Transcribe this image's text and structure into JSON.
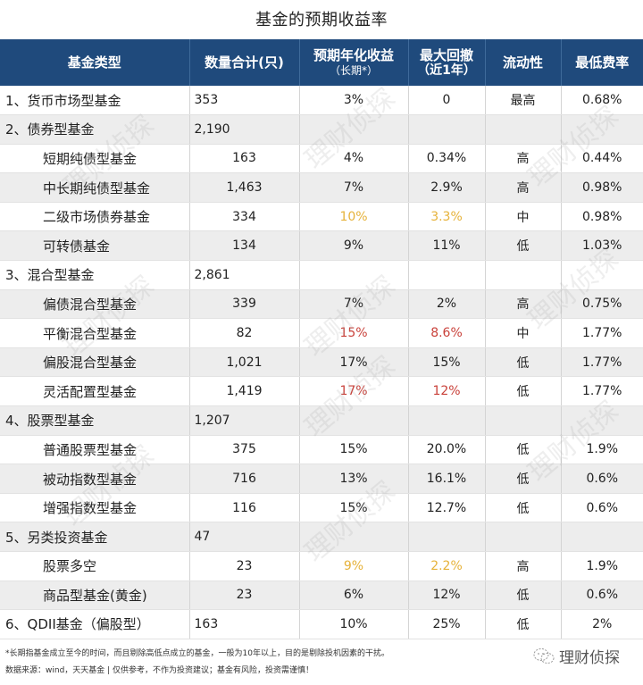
{
  "title": "基金的预期收益率",
  "header": {
    "col0": "基金类型",
    "col1": "数量合计(只)",
    "col2": "预期年化收益",
    "col2_sub": "（长期*）",
    "col3": "最大回撤",
    "col3_sub": "（近1年）",
    "col4": "流动性",
    "col5": "最低费率"
  },
  "rows": [
    {
      "type": "cat",
      "name": "1、货币市场型基金",
      "count": "353",
      "return": "3%",
      "drawdown": "0",
      "liquidity": "最高",
      "fee": "0.68%"
    },
    {
      "type": "cat",
      "name": "2、债券型基金",
      "count": "2,190",
      "return": "",
      "drawdown": "",
      "liquidity": "",
      "fee": ""
    },
    {
      "type": "sub",
      "name": "短期纯债型基金",
      "count": "163",
      "return": "4%",
      "drawdown": "0.34%",
      "liquidity": "高",
      "fee": "0.44%"
    },
    {
      "type": "sub",
      "name": "中长期纯债型基金",
      "count": "1,463",
      "return": "7%",
      "drawdown": "2.9%",
      "liquidity": "高",
      "fee": "0.98%"
    },
    {
      "type": "sub",
      "name": "二级市场债券基金",
      "count": "334",
      "return": "10%",
      "drawdown": "3.3%",
      "liquidity": "中",
      "fee": "0.98%",
      "highlight": "yellow"
    },
    {
      "type": "sub",
      "name": "可转债基金",
      "count": "134",
      "return": "9%",
      "drawdown": "11%",
      "liquidity": "低",
      "fee": "1.03%"
    },
    {
      "type": "cat",
      "name": "3、混合型基金",
      "count": "2,861",
      "return": "",
      "drawdown": "",
      "liquidity": "",
      "fee": ""
    },
    {
      "type": "sub",
      "name": "偏债混合型基金",
      "count": "339",
      "return": "7%",
      "drawdown": "2%",
      "liquidity": "高",
      "fee": "0.75%"
    },
    {
      "type": "sub",
      "name": "平衡混合型基金",
      "count": "82",
      "return": "15%",
      "drawdown": "8.6%",
      "liquidity": "中",
      "fee": "1.77%",
      "highlight": "red"
    },
    {
      "type": "sub",
      "name": "偏股混合型基金",
      "count": "1,021",
      "return": "17%",
      "drawdown": "15%",
      "liquidity": "低",
      "fee": "1.77%"
    },
    {
      "type": "sub",
      "name": "灵活配置型基金",
      "count": "1,419",
      "return": "17%",
      "drawdown": "12%",
      "liquidity": "低",
      "fee": "1.77%",
      "highlight": "red"
    },
    {
      "type": "cat",
      "name": "4、股票型基金",
      "count": "1,207",
      "return": "",
      "drawdown": "",
      "liquidity": "",
      "fee": ""
    },
    {
      "type": "sub",
      "name": "普通股票型基金",
      "count": "375",
      "return": "15%",
      "drawdown": "20.0%",
      "liquidity": "低",
      "fee": "1.9%"
    },
    {
      "type": "sub",
      "name": "被动指数型基金",
      "count": "716",
      "return": "13%",
      "drawdown": "16.1%",
      "liquidity": "低",
      "fee": "0.6%"
    },
    {
      "type": "sub",
      "name": "增强指数型基金",
      "count": "116",
      "return": "15%",
      "drawdown": "12.7%",
      "liquidity": "低",
      "fee": "0.6%"
    },
    {
      "type": "cat",
      "name": "5、另类投资基金",
      "count": "47",
      "return": "",
      "drawdown": "",
      "liquidity": "",
      "fee": ""
    },
    {
      "type": "sub",
      "name": "股票多空",
      "count": "23",
      "return": "9%",
      "drawdown": "2.2%",
      "liquidity": "高",
      "fee": "1.9%",
      "highlight": "yellow"
    },
    {
      "type": "sub",
      "name": "商品型基金(黄金)",
      "count": "23",
      "return": "6%",
      "drawdown": "12%",
      "liquidity": "低",
      "fee": "0.6%"
    },
    {
      "type": "cat",
      "name": "6、QDII基金（偏股型）",
      "count": "163",
      "return": "10%",
      "drawdown": "25%",
      "liquidity": "低",
      "fee": "2%"
    }
  ],
  "footnotes": {
    "note1": "*长期指基金成立至今的时间，而且剔除高低点成立的基金，一般为10年以上，目的是剔除投机因素的干扰。",
    "note2": "数据来源：wind，天天基金 | 仅供参考，不作为投资建议；基金有风险，投资需谨慎！"
  },
  "brand": {
    "icon": "wechat-icon",
    "name": "理财侦探"
  },
  "watermark": "理财侦探",
  "colors": {
    "header_bg": "#1f4a7c",
    "highlight_yellow": "#e6b23a",
    "highlight_red": "#c9413a",
    "row_alt": "#ededed"
  }
}
